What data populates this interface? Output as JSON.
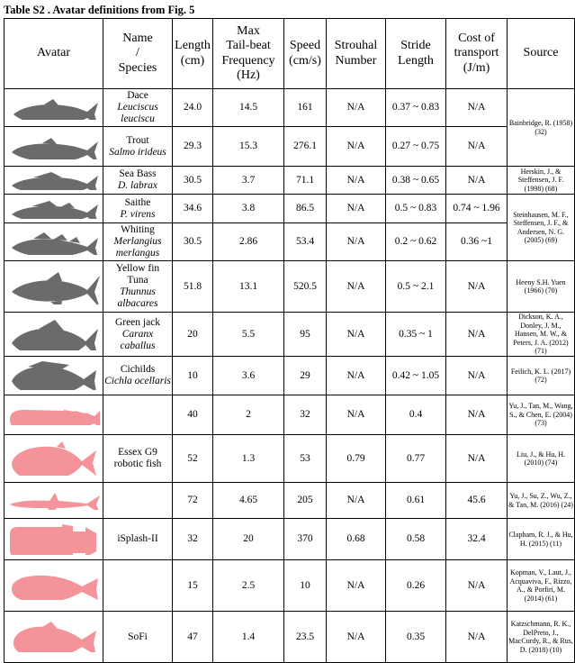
{
  "caption": "Table S2 . Avatar definitions from Fig. 5",
  "headers": {
    "avatar": "Avatar",
    "name_l1": "Name",
    "name_l2": "/",
    "name_l3": "Species",
    "length_l1": "Length",
    "length_l2": "(cm)",
    "freq_l1": "Max",
    "freq_l2": "Tail-beat",
    "freq_l3": "Frequency",
    "freq_l4": "(Hz)",
    "speed_l1": "Speed",
    "speed_l2": "(cm/s)",
    "strouhal_l1": "Strouhal",
    "strouhal_l2": "Number",
    "stride_l1": "Stride",
    "stride_l2": "Length",
    "cot_l1": "Cost of",
    "cot_l2": "transport",
    "cot_l3": "(J/m)",
    "source": "Source"
  },
  "rows": [
    {
      "icon": "fish-icon",
      "common": "Dace",
      "latin": "Leuciscus leuciscu",
      "length": "24.0",
      "freq": "14.5",
      "speed": "161",
      "strouhal": "N/A",
      "stride": "0.37 ~ 0.83",
      "cot": "N/A"
    },
    {
      "icon": "fish-icon",
      "common": "Trout",
      "latin": "Salmo irideus",
      "length": "29.3",
      "freq": "15.3",
      "speed": "276.1",
      "strouhal": "N/A",
      "stride": "0.27 ~ 0.75",
      "cot": "N/A"
    },
    {
      "icon": "fish-icon",
      "common": "Sea Bass",
      "latin": "D. labrax",
      "length": "30.5",
      "freq": "3.7",
      "speed": "71.1",
      "strouhal": "N/A",
      "stride": "0.38 ~ 0.65",
      "cot": "N/A",
      "source": "Herskin, J., & Steffensen, J. F. (1998) (68)"
    },
    {
      "icon": "fish-icon",
      "common": "Saithe",
      "latin": "P. virens",
      "length": "34.6",
      "freq": "3.8",
      "speed": "86.5",
      "strouhal": "N/A",
      "stride": "0.5 ~ 0.83",
      "cot": "0.74 ~ 1.96"
    },
    {
      "icon": "fish-icon",
      "common": "Whiting",
      "latin": "Merlangius merlangus",
      "length": "30.5",
      "freq": "2.86",
      "speed": "53.4",
      "strouhal": "N/A",
      "stride": "0.2 ~ 0.62",
      "cot": "0.36 ~1"
    },
    {
      "icon": "fish-icon",
      "common": "Yellow fin Tuna",
      "latin": "Thunnus albacares",
      "length": "51.8",
      "freq": "13.1",
      "speed": "520.5",
      "strouhal": "N/A",
      "stride": "0.5 ~ 2.1",
      "cot": "N/A",
      "source": "Heeny S.H. Yuen (1966) (70)"
    },
    {
      "icon": "fish-icon",
      "common": "Green jack",
      "latin": "Caranx caballus",
      "length": "20",
      "freq": "5.5",
      "speed": "95",
      "strouhal": "N/A",
      "stride": "0.35 ~ 1",
      "cot": "N/A",
      "source": "Dickson, K. A., Donley, J. M., Hansen, M. W., & Peters, J. A. (2012) (71)"
    },
    {
      "icon": "fish-icon",
      "common": "Cichilds",
      "latin": "Cichla ocellaris",
      "length": "10",
      "freq": "3.6",
      "speed": "29",
      "strouhal": "N/A",
      "stride": "0.42 ~ 1.05",
      "cot": "N/A",
      "source": "Feilich, K. L. (2017) (72)"
    },
    {
      "icon": "robot-fish-icon",
      "common": "",
      "latin": "",
      "length": "40",
      "freq": "2",
      "speed": "32",
      "strouhal": "N/A",
      "stride": "0.4",
      "cot": "N/A",
      "source": "Yu, J., Tan, M., Wang, S., & Chen, E. (2004) (73)"
    },
    {
      "icon": "robot-fish-icon",
      "common": "Essex G9 robotic fish",
      "latin": "",
      "length": "52",
      "freq": "1.3",
      "speed": "53",
      "strouhal": "0.79",
      "stride": "0.77",
      "cot": "N/A",
      "source": "Liu, J., & Hu, H. (2010) (74)"
    },
    {
      "icon": "robot-fish-icon",
      "common": "",
      "latin": "",
      "length": "72",
      "freq": "4.65",
      "speed": "205",
      "strouhal": "N/A",
      "stride": "0.61",
      "cot": "45.6",
      "source": "Yu, J., Su, Z., Wu, Z., & Tan, M. (2016) (24)"
    },
    {
      "icon": "robot-fish-icon",
      "common": "iSplash-II",
      "latin": "",
      "length": "32",
      "freq": "20",
      "speed": "370",
      "strouhal": "0.68",
      "stride": "0.58",
      "cot": "32.4",
      "source": "Clapham, R. J., & Hu, H. (2015) (11)"
    },
    {
      "icon": "robot-fish-icon",
      "common": "",
      "latin": "",
      "length": "15",
      "freq": "2.5",
      "speed": "10",
      "strouhal": "N/A",
      "stride": "0.26",
      "cot": "N/A",
      "source": "Kopman, V., Laut, J., Acquaviva, F., Rizzo, A., & Porfiri, M. (2014) (61)"
    },
    {
      "icon": "robot-fish-icon",
      "common": "SoFi",
      "latin": "",
      "length": "47",
      "freq": "1.4",
      "speed": "23.5",
      "strouhal": "N/A",
      "stride": "0.35",
      "cot": "N/A",
      "source": "Katzschmann, R. K., DelPreto, J., MacCurdy, R., & Rus, D. (2018) (10)"
    }
  ],
  "merged_sources": {
    "bainbridge": "Bainbridge, R. (1958) (32)",
    "steinhausen": "Steinhausen, M. F., Steffensen, J. F., & Andersen, N. G. (2005) (69)"
  },
  "colors": {
    "natural": "#6b6b6b",
    "robotic": "#f4939a"
  }
}
